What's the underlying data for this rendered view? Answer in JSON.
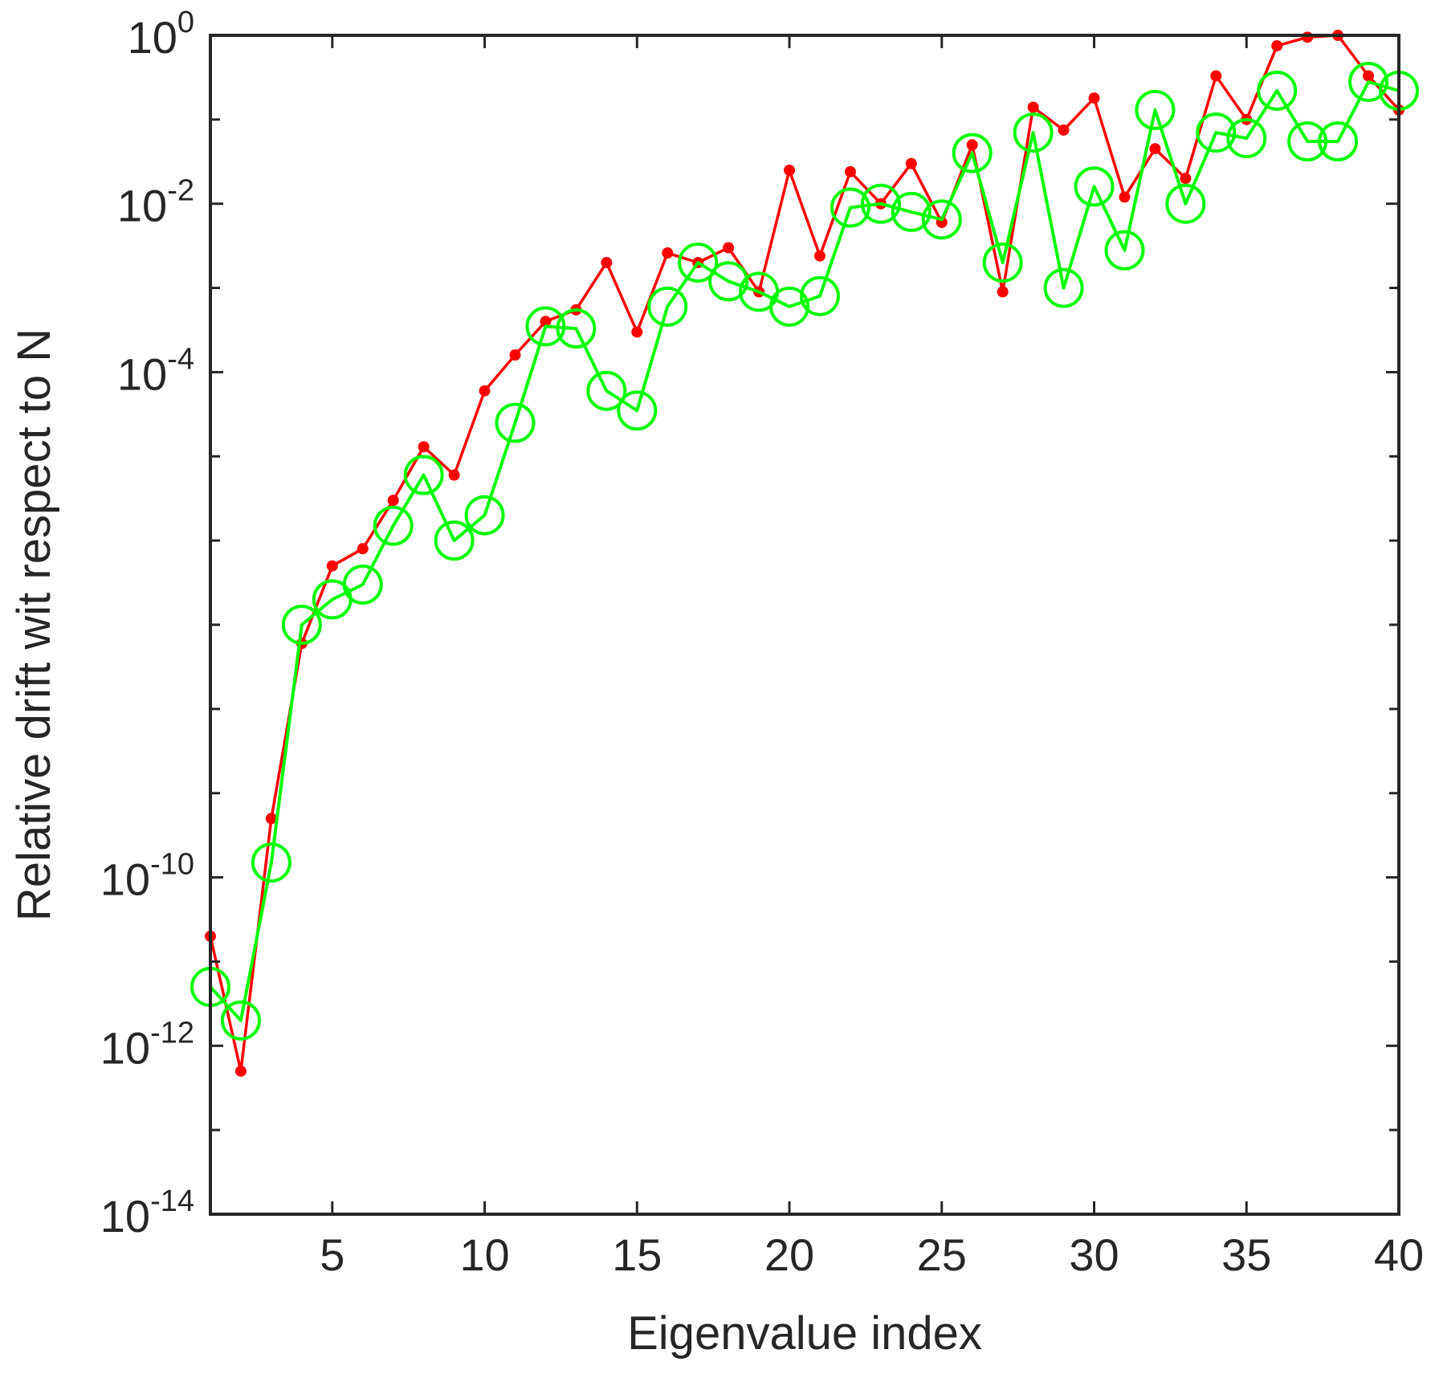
{
  "chart_data": {
    "type": "line",
    "xlabel": "Eigenvalue index",
    "ylabel": "Relative drift wit respect to N",
    "x_scale": "linear",
    "y_scale": "log",
    "xlim": [
      1,
      40
    ],
    "ylim": [
      1e-14,
      1
    ],
    "x_ticks": [
      5,
      10,
      15,
      20,
      25,
      30,
      35,
      40
    ],
    "x_tick_labels": [
      "5",
      "10",
      "15",
      "20",
      "25",
      "30",
      "35",
      "40"
    ],
    "y_ticks": [
      {
        "value": 1e-14,
        "base": "10",
        "exp": "-14"
      },
      {
        "value": 1e-12,
        "base": "10",
        "exp": "-12"
      },
      {
        "value": 1e-10,
        "base": "10",
        "exp": "-10"
      },
      {
        "value": 0.0001,
        "base": "10",
        "exp": "-4"
      },
      {
        "value": 0.01,
        "base": "10",
        "exp": "-2"
      },
      {
        "value": 1,
        "base": "10",
        "exp": "0"
      }
    ],
    "y_minor_ticks": [
      1e-13,
      1e-11,
      1e-09,
      1e-08,
      1e-07,
      1e-06,
      1e-05,
      0.001,
      0.1
    ],
    "grid": false,
    "x": [
      1,
      2,
      3,
      4,
      5,
      6,
      7,
      8,
      9,
      10,
      11,
      12,
      13,
      14,
      15,
      16,
      17,
      18,
      19,
      20,
      21,
      22,
      23,
      24,
      25,
      26,
      27,
      28,
      29,
      30,
      31,
      32,
      33,
      34,
      35,
      36,
      37,
      38,
      39,
      40
    ],
    "series": [
      {
        "color": "#ff0000",
        "marker": "dot",
        "values": [
          2e-11,
          5e-13,
          5e-10,
          6e-08,
          5e-07,
          8e-07,
          3e-06,
          1.3e-05,
          6e-06,
          6e-05,
          0.00016,
          0.0004,
          0.00055,
          0.002,
          0.0003,
          0.0026,
          0.002,
          0.003,
          0.0009,
          0.025,
          0.0024,
          0.024,
          0.01,
          0.03,
          0.006,
          0.05,
          0.0009,
          0.14,
          0.075,
          0.18,
          0.012,
          0.045,
          0.02,
          0.33,
          0.1,
          0.75,
          0.95,
          1.0,
          0.33,
          0.13
        ]
      },
      {
        "color": "#00ff00",
        "marker": "circle",
        "values": [
          5e-12,
          2e-12,
          1.5e-10,
          1e-07,
          2e-07,
          3e-07,
          1.5e-06,
          6e-06,
          1e-06,
          2e-06,
          2.5e-05,
          0.00035,
          0.00033,
          6e-05,
          3.5e-05,
          0.0006,
          0.002,
          0.0012,
          0.0009,
          0.0006,
          0.0008,
          0.009,
          0.01,
          0.008,
          0.0065,
          0.04,
          0.002,
          0.07,
          0.001,
          0.016,
          0.0028,
          0.13,
          0.01,
          0.07,
          0.06,
          0.22,
          0.055,
          0.055,
          0.28,
          0.22
        ]
      }
    ]
  }
}
